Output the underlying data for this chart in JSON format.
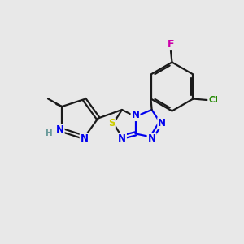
{
  "background_color": "#e8e8e8",
  "bond_color": "#1a1a1a",
  "bond_width": 1.6,
  "atom_colors": {
    "N": "#0000ee",
    "S": "#cccc00",
    "F": "#cc00aa",
    "Cl": "#228800",
    "H": "#6a9a9a",
    "C": "#1a1a1a"
  },
  "figsize": [
    3.0,
    3.0
  ],
  "dpi": 100
}
